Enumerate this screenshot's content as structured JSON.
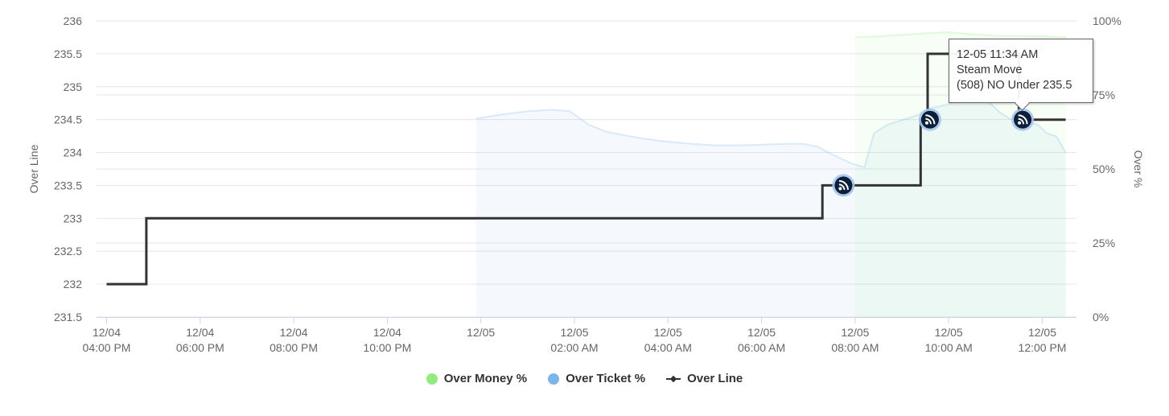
{
  "chart_data": {
    "type": "line",
    "y_left": {
      "label": "Over Line",
      "ticks": [
        "236",
        "235.5",
        "235",
        "234.5",
        "234",
        "233.5",
        "233",
        "232.5",
        "232",
        "231.5"
      ],
      "range": [
        231.5,
        236
      ]
    },
    "y_right": {
      "label": "Over %",
      "ticks": [
        "100%",
        "75%",
        "50%",
        "25%",
        "0%"
      ],
      "range": [
        0,
        100
      ]
    },
    "x_ticks": [
      {
        "line1": "12/04",
        "line2": "04:00 PM",
        "hour": 0
      },
      {
        "line1": "12/04",
        "line2": "06:00 PM",
        "hour": 2
      },
      {
        "line1": "12/04",
        "line2": "08:00 PM",
        "hour": 4
      },
      {
        "line1": "12/04",
        "line2": "10:00 PM",
        "hour": 6
      },
      {
        "line1": "12/05",
        "line2": "",
        "hour": 8
      },
      {
        "line1": "12/05",
        "line2": "02:00 AM",
        "hour": 10
      },
      {
        "line1": "12/05",
        "line2": "04:00 AM",
        "hour": 12
      },
      {
        "line1": "12/05",
        "line2": "06:00 AM",
        "hour": 14
      },
      {
        "line1": "12/05",
        "line2": "08:00 AM",
        "hour": 16
      },
      {
        "line1": "12/05",
        "line2": "10:00 AM",
        "hour": 18
      },
      {
        "line1": "12/05",
        "line2": "12:00 PM",
        "hour": 20
      }
    ],
    "series": [
      {
        "name": "Over Money %",
        "color": "#90ed7d",
        "type": "area",
        "points": [
          [
            16.0,
            94.5
          ],
          [
            16.5,
            94.8
          ],
          [
            17.0,
            95.3
          ],
          [
            17.5,
            95.8
          ],
          [
            18.0,
            96.2
          ],
          [
            18.5,
            95.5
          ],
          [
            19.0,
            95.0
          ],
          [
            20.0,
            94.8
          ],
          [
            20.5,
            94.5
          ],
          [
            20.5,
            0
          ],
          [
            16.0,
            0
          ]
        ]
      },
      {
        "name": "Over Ticket %",
        "color": "#7cb5ec",
        "type": "area",
        "points": [
          [
            7.9,
            67
          ],
          [
            8.5,
            68.5
          ],
          [
            9.0,
            69.5
          ],
          [
            9.5,
            70
          ],
          [
            9.9,
            69.5
          ],
          [
            10.3,
            65
          ],
          [
            10.7,
            62.5
          ],
          [
            11.2,
            61
          ],
          [
            11.8,
            59.5
          ],
          [
            12.5,
            58.5
          ],
          [
            13.0,
            58
          ],
          [
            13.5,
            58
          ],
          [
            14.0,
            58.2
          ],
          [
            14.5,
            58.5
          ],
          [
            14.9,
            58.5
          ],
          [
            15.2,
            57.5
          ],
          [
            15.5,
            55
          ],
          [
            15.9,
            52
          ],
          [
            16.2,
            50.5
          ],
          [
            16.4,
            62
          ],
          [
            16.7,
            65
          ],
          [
            17.0,
            66.5
          ],
          [
            17.3,
            68
          ],
          [
            17.6,
            70.5
          ],
          [
            17.9,
            71.5
          ],
          [
            18.2,
            73
          ],
          [
            18.5,
            73.8
          ],
          [
            18.7,
            74
          ],
          [
            18.9,
            72
          ],
          [
            19.1,
            69
          ],
          [
            19.3,
            67
          ],
          [
            19.6,
            66
          ],
          [
            19.9,
            65
          ],
          [
            20.1,
            62
          ],
          [
            20.3,
            61
          ],
          [
            20.5,
            55.5
          ],
          [
            20.5,
            0
          ],
          [
            7.9,
            0
          ]
        ]
      },
      {
        "name": "Over Line",
        "color": "#333333",
        "type": "step",
        "points": [
          [
            0,
            232
          ],
          [
            0.85,
            232
          ],
          [
            0.85,
            233
          ],
          [
            15.3,
            233
          ],
          [
            15.3,
            233.5
          ],
          [
            17.4,
            233.5
          ],
          [
            17.4,
            234.5
          ],
          [
            17.55,
            234.5
          ],
          [
            17.55,
            235.5
          ],
          [
            19.5,
            235.5
          ],
          [
            19.5,
            234.5
          ],
          [
            20.5,
            234.5
          ]
        ]
      }
    ],
    "markers": [
      {
        "name": "steam-move-marker-1",
        "hour": 15.75,
        "value": 233.5
      },
      {
        "name": "steam-move-marker-2",
        "hour": 17.6,
        "value": 234.5
      },
      {
        "name": "steam-move-marker-3",
        "hour": 19.58,
        "value": 234.5
      }
    ],
    "tooltip": {
      "line1": "12-05 11:34 AM",
      "line2": "Steam Move",
      "line3": "(508) NO Under 235.5"
    },
    "legend": [
      {
        "label": "Over Money %",
        "color": "#90ed7d",
        "symbol": "dot"
      },
      {
        "label": "Over Ticket %",
        "color": "#7cb5ec",
        "symbol": "dot"
      },
      {
        "label": "Over Line",
        "color": "#333333",
        "symbol": "line"
      }
    ],
    "grid": true,
    "legend_position": "bottom-center"
  }
}
